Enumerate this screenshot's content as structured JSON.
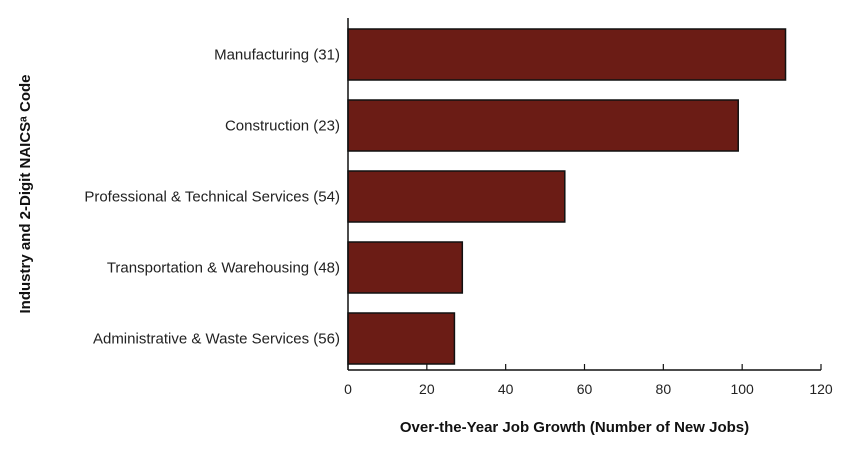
{
  "chart_data": {
    "type": "bar",
    "orientation": "horizontal",
    "categories": [
      "Manufacturing (31)",
      "Construction (23)",
      "Professional & Technical Services (54)",
      "Transportation & Warehousing (48)",
      "Administrative & Waste Services (56)"
    ],
    "values": [
      111,
      99,
      55,
      29,
      27
    ],
    "title": "",
    "xlabel": "Over-the-Year Job Growth (Number of New Jobs)",
    "ylabel": "Industry and 2-Digit NAICSᵃ Code",
    "xlim": [
      0,
      120
    ],
    "xticks": [
      "0",
      "20",
      "40",
      "60",
      "80",
      "100",
      "120"
    ],
    "grid": false,
    "legend": "none",
    "bar_color": "#6b1c15",
    "bar_stroke": "#111111"
  }
}
